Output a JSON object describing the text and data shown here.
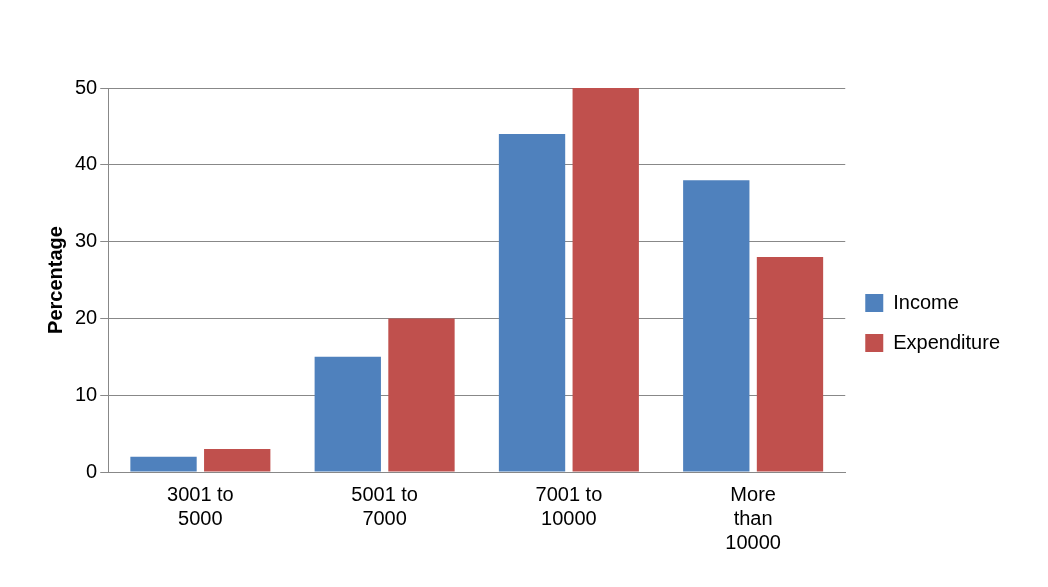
{
  "chart_data": {
    "type": "bar",
    "ylabel": "Percentage",
    "categories": [
      "3001 to 5000",
      "5001 to 7000",
      "7001 to 10000",
      "More than 10000"
    ],
    "series": [
      {
        "name": "Income",
        "color": "#4f81bd",
        "values": [
          2,
          15,
          44,
          38
        ]
      },
      {
        "name": "Expenditure",
        "color": "#c0504d",
        "values": [
          3,
          20,
          50,
          28
        ]
      }
    ],
    "ylim": [
      0,
      50
    ],
    "yticks": [
      0,
      10,
      20,
      30,
      40,
      50
    ],
    "grid": "y",
    "legend": "right"
  }
}
